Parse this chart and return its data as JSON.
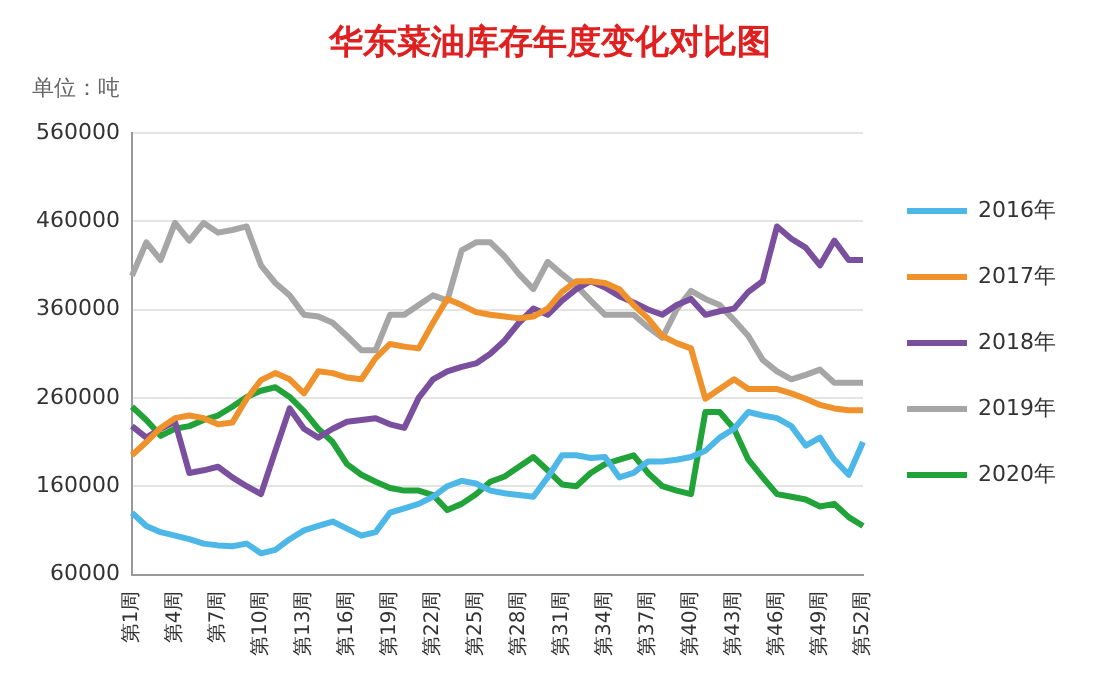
{
  "chart_data": {
    "type": "line",
    "title": "华东菜油库存年度变化对比图",
    "annotations": [
      "单位：吨"
    ],
    "categories": [
      "第1周",
      null,
      null,
      "第4周",
      null,
      null,
      "第7周",
      null,
      null,
      "第10周",
      null,
      null,
      "第13周",
      null,
      null,
      "第16周",
      null,
      null,
      "第19周",
      null,
      null,
      "第22周",
      null,
      null,
      "第25周",
      null,
      null,
      "第28周",
      null,
      null,
      "第31周",
      null,
      null,
      "第34周",
      null,
      null,
      "第37周",
      null,
      null,
      "第40周",
      null,
      null,
      "第43周",
      null,
      null,
      "第46周",
      null,
      null,
      "第49周",
      null,
      null,
      "第52周"
    ],
    "ylim": [
      60000,
      560000
    ],
    "yticks": [
      60000,
      160000,
      260000,
      360000,
      460000,
      560000
    ],
    "grid": "y",
    "legend": "right",
    "marker": "none",
    "line_style": "solid",
    "series": [
      {
        "name": "2016年",
        "color": "#4db8e8",
        "values": [
          130000,
          115000,
          108000,
          104000,
          100000,
          95000,
          93000,
          92000,
          95000,
          84000,
          88000,
          100000,
          110000,
          115000,
          120000,
          112000,
          104000,
          108000,
          130000,
          135000,
          140000,
          148000,
          160000,
          166000,
          163000,
          155000,
          152000,
          150000,
          148000,
          170000,
          195000,
          195000,
          192000,
          193000,
          170000,
          175000,
          188000,
          188000,
          190000,
          193000,
          200000,
          215000,
          225000,
          244000,
          240000,
          237000,
          228000,
          206000,
          215000,
          190000,
          173000,
          210000
        ]
      },
      {
        "name": "2017年",
        "color": "#f0922b",
        "values": [
          195000,
          210000,
          226000,
          237000,
          240000,
          237000,
          230000,
          232000,
          259000,
          280000,
          288000,
          281000,
          265000,
          290000,
          288000,
          283000,
          281000,
          305000,
          321000,
          318000,
          316000,
          345000,
          372000,
          365000,
          357000,
          354000,
          352000,
          350000,
          352000,
          361000,
          380000,
          392000,
          392000,
          390000,
          383000,
          365000,
          350000,
          330000,
          322000,
          316000,
          259000,
          270000,
          281000,
          270000,
          270000,
          270000,
          265000,
          259000,
          252000,
          248000,
          246000,
          246000
        ]
      },
      {
        "name": "2018年",
        "color": "#7a4f9e",
        "values": [
          228000,
          215000,
          225000,
          233000,
          175000,
          178000,
          182000,
          170000,
          160000,
          151000,
          200000,
          248000,
          225000,
          215000,
          225000,
          233000,
          235000,
          237000,
          230000,
          226000,
          260000,
          281000,
          290000,
          295000,
          299000,
          310000,
          325000,
          345000,
          361000,
          354000,
          370000,
          383000,
          392000,
          385000,
          375000,
          368000,
          360000,
          354000,
          365000,
          372000,
          354000,
          358000,
          361000,
          380000,
          392000,
          454000,
          440000,
          430000,
          410000,
          438000,
          416000,
          416000
        ]
      },
      {
        "name": "2019年",
        "color": "#a6a6a6",
        "values": [
          398000,
          436000,
          416000,
          458000,
          438000,
          458000,
          447000,
          450000,
          454000,
          410000,
          390000,
          376000,
          354000,
          352000,
          345000,
          330000,
          314000,
          314000,
          354000,
          354000,
          365000,
          376000,
          370000,
          427000,
          436000,
          436000,
          420000,
          400000,
          383000,
          414000,
          400000,
          387000,
          370000,
          354000,
          354000,
          354000,
          340000,
          328000,
          360000,
          381000,
          372000,
          365000,
          348000,
          330000,
          303000,
          290000,
          281000,
          286000,
          292000,
          277000,
          277000,
          277000
        ]
      },
      {
        "name": "2020年",
        "color": "#22a33a",
        "values": [
          250000,
          235000,
          217000,
          225000,
          228000,
          235000,
          240000,
          250000,
          261000,
          268000,
          272000,
          261000,
          245000,
          225000,
          210000,
          185000,
          173000,
          165000,
          158000,
          155000,
          155000,
          150000,
          133000,
          140000,
          151000,
          165000,
          171000,
          182000,
          193000,
          178000,
          162000,
          160000,
          175000,
          185000,
          190000,
          195000,
          175000,
          160000,
          155000,
          151000,
          244000,
          244000,
          225000,
          190000,
          170000,
          151000,
          148000,
          145000,
          137000,
          140000,
          125000,
          115000
        ]
      }
    ]
  }
}
